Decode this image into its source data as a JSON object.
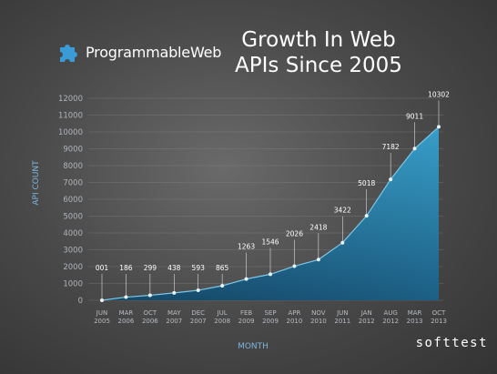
{
  "header": {
    "logo_text": "ProgrammableWeb",
    "title_line1": "Growth In Web",
    "title_line2": "APIs Since 2005"
  },
  "watermark": "softtest",
  "colors": {
    "area_top": "#39a5cf",
    "area_bottom": "#164d6b",
    "logo_blue": "#3b9bd6"
  },
  "chart_data": {
    "type": "area",
    "xlabel": "MONTH",
    "ylabel": "API COUNT",
    "ylim": [
      0,
      12000
    ],
    "yticks": [
      0,
      1000,
      2000,
      3000,
      4000,
      5000,
      6000,
      7000,
      8000,
      9000,
      10000,
      11000,
      12000
    ],
    "categories": [
      [
        "JUN",
        "2005"
      ],
      [
        "MAR",
        "2006"
      ],
      [
        "OCT",
        "2006"
      ],
      [
        "MAY",
        "2007"
      ],
      [
        "DEC",
        "2007"
      ],
      [
        "JUL",
        "2008"
      ],
      [
        "FEB",
        "2009"
      ],
      [
        "SEP",
        "2009"
      ],
      [
        "APR",
        "2010"
      ],
      [
        "NOV",
        "2010"
      ],
      [
        "JUN",
        "2011"
      ],
      [
        "JAN",
        "2012"
      ],
      [
        "AUG",
        "2012"
      ],
      [
        "MAR",
        "2013"
      ],
      [
        "OCT",
        "2013"
      ]
    ],
    "values": [
      1,
      186,
      299,
      438,
      593,
      865,
      1263,
      1546,
      2026,
      2418,
      3422,
      5018,
      7182,
      9011,
      10302
    ],
    "labels": [
      "001",
      "186",
      "299",
      "438",
      "593",
      "865",
      "1263",
      "1546",
      "2026",
      "2418",
      "3422",
      "5018",
      "7182",
      "9011",
      "10302"
    ],
    "grid": true
  }
}
